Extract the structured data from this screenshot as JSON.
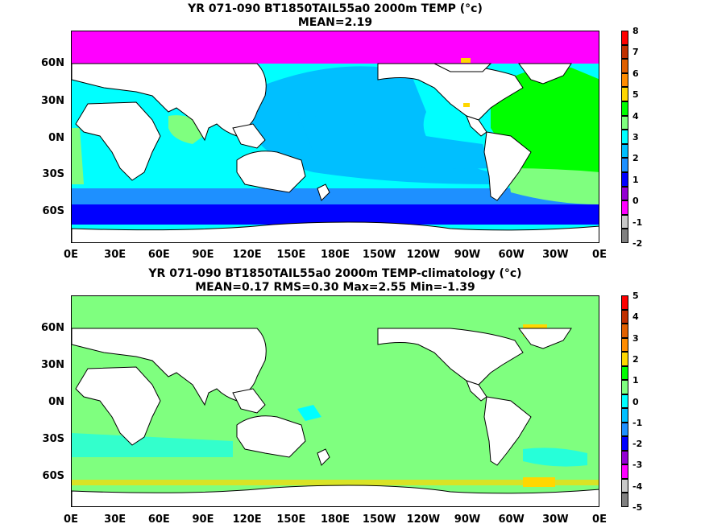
{
  "panels": [
    {
      "title_line1": "YR 071-090 BT1850TAIL55a0 2000m TEMP (°c)",
      "title_line2": "MEAN=2.19",
      "colorbar_labels": [
        "8",
        "7",
        "6",
        "5",
        "4",
        "3",
        "2",
        "1",
        "0",
        "-1",
        "-2"
      ],
      "colorbar_colors": [
        "#808080",
        "#c8c8c8",
        "#ff00ff",
        "#9400d3",
        "#0000ff",
        "#1e90ff",
        "#00bfff",
        "#00ffff",
        "#7fff7f",
        "#00ff00",
        "#ffd700",
        "#ff8c00",
        "#e06000",
        "#c03000",
        "#ff0000"
      ]
    },
    {
      "title_line1": "YR 071-090 BT1850TAIL55a0 2000m TEMP-climatology (°c)",
      "title_line2": "MEAN=0.17   RMS=0.30   Max=2.55   Min=-1.39",
      "colorbar_labels": [
        "5",
        "4",
        "3",
        "2",
        "1",
        "0",
        "-1",
        "-2",
        "-3",
        "-4",
        "-5"
      ],
      "colorbar_colors": [
        "#808080",
        "#c8c8c8",
        "#ff00ff",
        "#9400d3",
        "#0000ff",
        "#1e90ff",
        "#00bfff",
        "#00ffff",
        "#7fff7f",
        "#00ff00",
        "#ffd700",
        "#ff8c00",
        "#e06000",
        "#c03000",
        "#ff0000"
      ]
    }
  ],
  "lat_labels": [
    "60N",
    "30N",
    "0N",
    "30S",
    "60S"
  ],
  "lon_labels": [
    "0E",
    "30E",
    "60E",
    "90E",
    "120E",
    "150E",
    "180E",
    "150W",
    "120W",
    "90W",
    "60W",
    "30W",
    "0E"
  ]
}
